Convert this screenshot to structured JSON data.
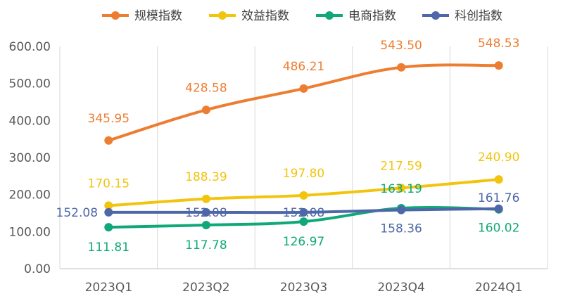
{
  "chart_data": {
    "type": "line",
    "categories": [
      "2023Q1",
      "2023Q2",
      "2023Q3",
      "2023Q4",
      "2024Q1"
    ],
    "ylim": [
      0,
      600
    ],
    "yticks": [
      "0.00",
      "100.00",
      "200.00",
      "300.00",
      "400.00",
      "500.00",
      "600.00"
    ],
    "grid": "vertical",
    "legend_position": "top",
    "series": [
      {
        "name": "规模指数",
        "color": "#ED7D31",
        "values": [
          345.95,
          428.58,
          486.21,
          543.5,
          548.53
        ],
        "labels": [
          "345.95",
          "428.58",
          "486.21",
          "543.50",
          "548.53"
        ]
      },
      {
        "name": "效益指数",
        "color": "#F2C40E",
        "values": [
          170.15,
          188.39,
          197.8,
          217.59,
          240.9
        ],
        "labels": [
          "170.15",
          "188.39",
          "197.80",
          "217.59",
          "240.90"
        ]
      },
      {
        "name": "电商指数",
        "color": "#10A878",
        "values": [
          111.81,
          117.78,
          126.97,
          163.19,
          160.02
        ],
        "labels": [
          "111.81",
          "117.78",
          "126.97",
          "163.19",
          "160.02"
        ]
      },
      {
        "name": "科创指数",
        "color": "#4E67A8",
        "values": [
          152.08,
          152.08,
          152.08,
          158.36,
          161.76
        ],
        "labels": [
          "152.08",
          "152.08",
          "152.08",
          "158.36",
          "161.76"
        ]
      }
    ]
  }
}
